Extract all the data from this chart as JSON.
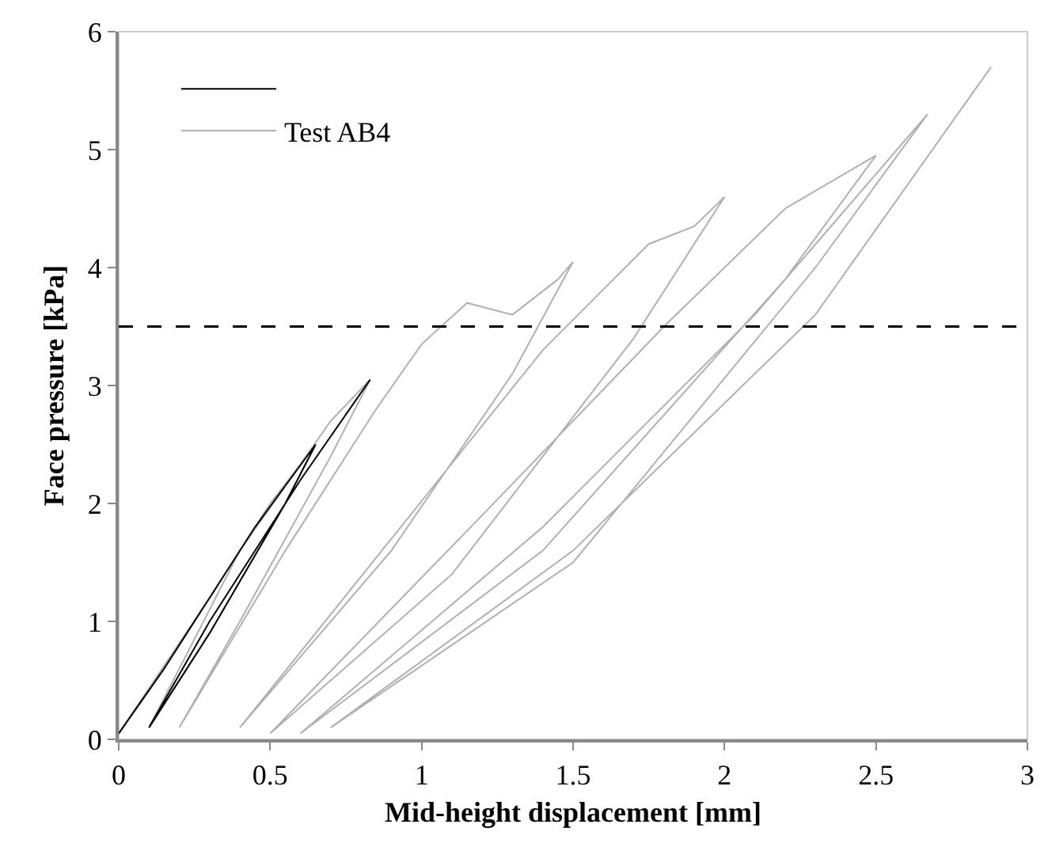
{
  "chart_data": {
    "type": "line",
    "xlabel": "Mid-height displacement [mm]",
    "ylabel": "Face pressure [kPa]",
    "xlim": [
      0,
      3
    ],
    "xticks": [
      0,
      0.5,
      1,
      1.5,
      2,
      2.5,
      3
    ],
    "ylim": [
      0,
      6
    ],
    "yticks": [
      0,
      1,
      2,
      3,
      4,
      5,
      6
    ],
    "grid": false,
    "legend": "top left",
    "marker": "none",
    "line_style": "solid",
    "ref_lines": [
      {
        "axis": "y",
        "value": 3.5,
        "color": "#000000",
        "line_style": "dashed"
      }
    ],
    "series": [
      {
        "color": "#000000",
        "x": [
          0,
          0.15,
          0.3,
          0.45,
          0.65,
          0.55,
          0.3,
          0.1,
          0.3,
          0.6,
          0.83
        ],
        "values": [
          0.05,
          0.6,
          1.2,
          1.8,
          2.5,
          2.0,
          0.9,
          0.1,
          1.0,
          2.2,
          3.05
        ]
      },
      {
        "name": "Test AB4",
        "color": "#b0b0b0",
        "x": [
          0,
          0.3,
          0.5,
          0.65,
          0.55,
          0.3,
          0.1,
          0.4,
          0.7,
          0.83,
          0.7,
          0.4,
          0.2,
          0.55,
          0.85,
          1.0,
          1.15,
          1.3,
          1.45,
          1.5,
          1.3,
          0.9,
          0.4,
          0.9,
          1.4,
          1.75,
          1.9,
          2.0,
          1.7,
          1.1,
          0.5,
          1.2,
          1.8,
          2.2,
          2.5,
          2.2,
          1.4,
          0.6,
          1.4,
          2.1,
          2.67,
          2.3,
          1.5,
          0.7,
          1.5,
          2.3,
          2.88
        ],
        "values": [
          0.05,
          1.2,
          2.0,
          2.5,
          2.0,
          0.9,
          0.1,
          1.6,
          2.7,
          3.05,
          2.4,
          1.0,
          0.1,
          1.6,
          2.8,
          3.35,
          3.7,
          3.6,
          3.9,
          4.05,
          3.1,
          1.6,
          0.1,
          1.7,
          3.3,
          4.2,
          4.35,
          4.6,
          3.4,
          1.4,
          0.05,
          1.9,
          3.5,
          4.5,
          4.95,
          3.9,
          1.6,
          0.05,
          1.8,
          3.6,
          5.3,
          4.0,
          1.5,
          0.1,
          1.6,
          3.6,
          5.7
        ]
      }
    ]
  }
}
